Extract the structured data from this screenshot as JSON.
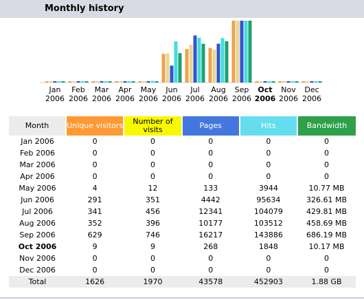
{
  "title": "Monthly history",
  "chart_data": {
    "type": "bar",
    "categories": [
      "Jan 2006",
      "Feb 2006",
      "Mar 2006",
      "Apr 2006",
      "May 2006",
      "Jun 2006",
      "Jul 2006",
      "Aug 2006",
      "Sep 2006",
      "Oct 2006",
      "Nov 2006",
      "Dec 2006"
    ],
    "current_month": "Oct 2006",
    "series": [
      {
        "name": "Unique visitors",
        "values": [
          0,
          0,
          0,
          0,
          4,
          291,
          341,
          352,
          629,
          9,
          0,
          0
        ],
        "color": "#f0a050"
      },
      {
        "name": "Number of visits",
        "values": [
          0,
          0,
          0,
          0,
          12,
          351,
          456,
          396,
          746,
          9,
          0,
          0
        ],
        "color": "#e8d890"
      },
      {
        "name": "Pages",
        "values": [
          0,
          0,
          0,
          0,
          133,
          4442,
          12341,
          10177,
          16217,
          268,
          0,
          0
        ],
        "color": "#3355cc"
      },
      {
        "name": "Hits",
        "values": [
          0,
          0,
          0,
          0,
          3944,
          95634,
          104079,
          103512,
          143886,
          1848,
          0,
          0
        ],
        "color": "#44dddd"
      },
      {
        "name": "Bandwidth",
        "values": [
          0,
          0,
          0,
          0,
          10.77,
          326.61,
          429.81,
          458.69,
          686.19,
          10.17,
          0,
          0
        ],
        "color": "#20a070"
      }
    ]
  },
  "months": [
    {
      "line1": "Jan",
      "line2": "2006"
    },
    {
      "line1": "Feb",
      "line2": "2006"
    },
    {
      "line1": "Mar",
      "line2": "2006"
    },
    {
      "line1": "Apr",
      "line2": "2006"
    },
    {
      "line1": "May",
      "line2": "2006"
    },
    {
      "line1": "Jun",
      "line2": "2006"
    },
    {
      "line1": "Jul",
      "line2": "2006"
    },
    {
      "line1": "Aug",
      "line2": "2006"
    },
    {
      "line1": "Sep",
      "line2": "2006"
    },
    {
      "line1": "Oct",
      "line2": "2006"
    },
    {
      "line1": "Nov",
      "line2": "2006"
    },
    {
      "line1": "Dec",
      "line2": "2006"
    }
  ],
  "table": {
    "headers": {
      "month": "Month",
      "unique_visitors": "Unique visitors",
      "visits": "Number of visits",
      "pages": "Pages",
      "hits": "Hits",
      "bandwidth": "Bandwidth"
    },
    "rows": [
      {
        "month": "Jan 2006",
        "uv": "0",
        "visits": "0",
        "pages": "0",
        "hits": "0",
        "bw": "0"
      },
      {
        "month": "Feb 2006",
        "uv": "0",
        "visits": "0",
        "pages": "0",
        "hits": "0",
        "bw": "0"
      },
      {
        "month": "Mar 2006",
        "uv": "0",
        "visits": "0",
        "pages": "0",
        "hits": "0",
        "bw": "0"
      },
      {
        "month": "Apr 2006",
        "uv": "0",
        "visits": "0",
        "pages": "0",
        "hits": "0",
        "bw": "0"
      },
      {
        "month": "May 2006",
        "uv": "4",
        "visits": "12",
        "pages": "133",
        "hits": "3944",
        "bw": "10.77 MB"
      },
      {
        "month": "Jun 2006",
        "uv": "291",
        "visits": "351",
        "pages": "4442",
        "hits": "95634",
        "bw": "326.61 MB"
      },
      {
        "month": "Jul 2006",
        "uv": "341",
        "visits": "456",
        "pages": "12341",
        "hits": "104079",
        "bw": "429.81 MB"
      },
      {
        "month": "Aug 2006",
        "uv": "352",
        "visits": "396",
        "pages": "10177",
        "hits": "103512",
        "bw": "458.69 MB"
      },
      {
        "month": "Sep 2006",
        "uv": "629",
        "visits": "746",
        "pages": "16217",
        "hits": "143886",
        "bw": "686.19 MB"
      },
      {
        "month": "Oct 2006",
        "uv": "9",
        "visits": "9",
        "pages": "268",
        "hits": "1848",
        "bw": "10.17 MB"
      },
      {
        "month": "Nov 2006",
        "uv": "0",
        "visits": "0",
        "pages": "0",
        "hits": "0",
        "bw": "0"
      },
      {
        "month": "Dec 2006",
        "uv": "0",
        "visits": "0",
        "pages": "0",
        "hits": "0",
        "bw": "0"
      }
    ],
    "total": {
      "month": "Total",
      "uv": "1626",
      "visits": "1970",
      "pages": "43578",
      "hits": "452903",
      "bw": "1.88 GB"
    }
  }
}
